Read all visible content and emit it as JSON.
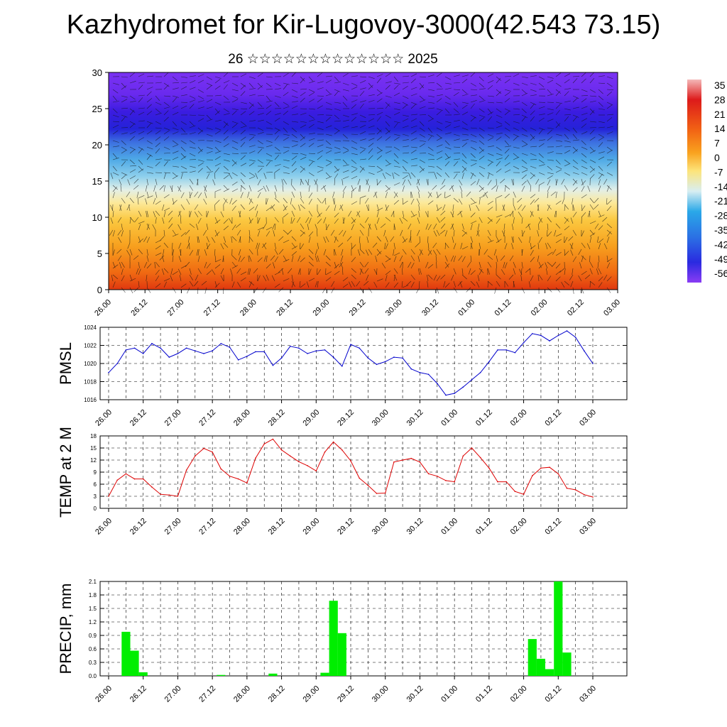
{
  "title": "Kazhydromet for Kir-Lugovoy-3000(42.543 73.15)",
  "subtitle": "26 ☆☆☆☆☆☆☆☆☆☆☆☆☆ 2025",
  "colors": {
    "pmsl": "#0000cc",
    "temp": "#dd0000",
    "precip": "#00ee00"
  },
  "chart_data": [
    {
      "type": "heatmap",
      "title": "",
      "ylim": [
        0,
        30
      ],
      "y_ticks": [
        "0",
        "5",
        "10",
        "15",
        "20",
        "25",
        "30"
      ],
      "x_ticks": [
        "26.00",
        "26.12",
        "27.00",
        "27.12",
        "28.00",
        "28.12",
        "29.00",
        "29.12",
        "30.00",
        "30.12",
        "01.00",
        "01.12",
        "02.00",
        "02.12",
        "03.00"
      ],
      "colorbar_labels": [
        "35",
        "28",
        "21",
        "14",
        "7",
        "0",
        "-7",
        "-14",
        "-21",
        "-28",
        "-35",
        "-42",
        "-49",
        "-56"
      ]
    },
    {
      "type": "line",
      "ylabel": "PMSL",
      "ylim": [
        1016,
        1024
      ],
      "y_ticks": [
        "1024",
        "1022",
        "1020",
        "1018",
        "1016"
      ],
      "x_ticks": [
        "26.00",
        "26.12",
        "27.00",
        "27.12",
        "28.00",
        "28.12",
        "29.00",
        "29.12",
        "30.00",
        "30.12",
        "01.00",
        "01.12",
        "02.00",
        "02.12",
        "03.00"
      ],
      "series": [
        {
          "values": [
            1019.0,
            1020.0,
            1021.5,
            1021.7,
            1021.1,
            1022.2,
            1021.7,
            1020.7,
            1021.1,
            1021.7,
            1021.4,
            1021.1,
            1021.4,
            1022.2,
            1021.8,
            1020.4,
            1020.8,
            1021.3,
            1021.3,
            1019.8,
            1020.6,
            1021.9,
            1021.7,
            1021.1,
            1021.4,
            1021.5,
            1020.7,
            1019.7,
            1022.1,
            1021.7,
            1020.6,
            1019.9,
            1020.2,
            1020.7,
            1020.6,
            1019.4,
            1019.0,
            1018.8,
            1017.8,
            1016.5,
            1016.7,
            1017.4,
            1018.2,
            1019.0,
            1020.2,
            1021.5,
            1021.5,
            1021.2,
            1022.3,
            1023.3,
            1023.1,
            1022.5,
            1023.1,
            1023.6,
            1022.9,
            1021.4,
            1020.0
          ]
        }
      ]
    },
    {
      "type": "line",
      "ylabel": "TEMP at 2 M",
      "ylim": [
        0,
        18
      ],
      "y_ticks": [
        "18",
        "15",
        "12",
        "9",
        "6",
        "3",
        "0"
      ],
      "x_ticks": [
        "26.00",
        "26.12",
        "27.00",
        "27.12",
        "28.00",
        "28.12",
        "29.00",
        "29.12",
        "30.00",
        "30.12",
        "01.00",
        "01.12",
        "02.00",
        "02.12",
        "03.00"
      ],
      "series": [
        {
          "values": [
            3.0,
            7.0,
            8.6,
            7.3,
            7.3,
            5.3,
            3.5,
            3.3,
            3.0,
            9.5,
            13.0,
            14.9,
            14.0,
            9.8,
            8.0,
            7.3,
            6.3,
            12.5,
            16.0,
            17.2,
            14.5,
            13.0,
            11.6,
            10.6,
            9.3,
            14.0,
            16.5,
            14.5,
            11.8,
            7.5,
            5.7,
            3.7,
            3.8,
            11.5,
            12.0,
            12.4,
            11.5,
            8.6,
            8.0,
            6.9,
            6.6,
            13.0,
            15.0,
            12.6,
            10.0,
            6.6,
            6.6,
            4.2,
            3.5,
            8.1,
            10.0,
            10.2,
            8.6,
            5.0,
            4.6,
            3.4,
            2.8
          ]
        }
      ]
    },
    {
      "type": "bar",
      "ylabel": "PRECIP, mm",
      "ylim": [
        0,
        2.1
      ],
      "y_ticks": [
        "2.1",
        "1.8",
        "1.5",
        "1.2",
        "0.9",
        "0.6",
        "0.3",
        "0.0"
      ],
      "x_ticks": [
        "26.00",
        "26.12",
        "27.00",
        "27.12",
        "28.00",
        "28.12",
        "29.00",
        "29.12",
        "30.00",
        "30.12",
        "01.00",
        "01.12",
        "02.00",
        "02.12",
        "03.00"
      ],
      "values": [
        0,
        0,
        0.98,
        0.56,
        0.08,
        0,
        0,
        0,
        0,
        0,
        0,
        0,
        0,
        0.02,
        0,
        0,
        0,
        0,
        0,
        0.05,
        0,
        0,
        0,
        0,
        0,
        0.07,
        1.67,
        0.95,
        0,
        0,
        0,
        0,
        0,
        0,
        0,
        0,
        0,
        0,
        0,
        0,
        0,
        0,
        0,
        0,
        0,
        0,
        0,
        0,
        0,
        0.82,
        0.38,
        0.15,
        2.1,
        0.52,
        0,
        0,
        0
      ]
    }
  ]
}
